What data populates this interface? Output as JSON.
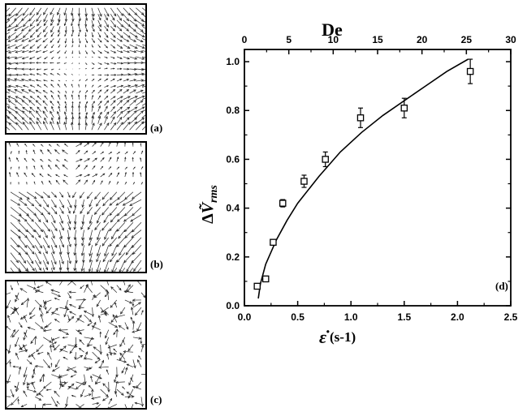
{
  "figure": {
    "panel_labels": {
      "a": "(a)",
      "b": "(b)",
      "c": "(c)",
      "d": "(d)"
    }
  },
  "chart_data": {
    "type": "scatter",
    "x_axis": {
      "label": "ε̇ (s⁻¹)",
      "label_main": "ε̇",
      "label_unit": "(s-1)",
      "range": [
        0.0,
        2.5
      ],
      "ticks": [
        "0.0",
        "0.5",
        "1.0",
        "1.5",
        "2.0",
        "2.5"
      ]
    },
    "top_axis": {
      "label": "De",
      "range": [
        0,
        30
      ],
      "ticks": [
        "0",
        "5",
        "10",
        "15",
        "20",
        "25",
        "30"
      ]
    },
    "y_axis": {
      "label": "ΔṼrms",
      "label_delta": "Δ",
      "label_v": "Ṽ",
      "label_sub": "rms",
      "range": [
        0.0,
        1.05
      ],
      "ticks": [
        "0.0",
        "0.2",
        "0.4",
        "0.6",
        "0.8",
        "1.0"
      ]
    },
    "points": [
      {
        "x": 0.12,
        "y": 0.08,
        "err": 0.01
      },
      {
        "x": 0.2,
        "y": 0.11,
        "err": 0.01
      },
      {
        "x": 0.27,
        "y": 0.26,
        "err": 0.01
      },
      {
        "x": 0.36,
        "y": 0.42,
        "err": 0.015
      },
      {
        "x": 0.56,
        "y": 0.51,
        "err": 0.025
      },
      {
        "x": 0.76,
        "y": 0.6,
        "err": 0.03
      },
      {
        "x": 1.09,
        "y": 0.77,
        "err": 0.04
      },
      {
        "x": 1.5,
        "y": 0.81,
        "err": 0.04
      },
      {
        "x": 2.12,
        "y": 0.96,
        "err": 0.05
      }
    ],
    "fit_curve": {
      "x": [
        0.13,
        0.15,
        0.2,
        0.3,
        0.4,
        0.5,
        0.7,
        0.9,
        1.1,
        1.3,
        1.5,
        1.7,
        1.9,
        2.1
      ],
      "y": [
        0.03,
        0.09,
        0.17,
        0.27,
        0.35,
        0.42,
        0.53,
        0.63,
        0.71,
        0.78,
        0.84,
        0.9,
        0.96,
        1.01
      ]
    },
    "grid": false,
    "legend": "none"
  }
}
